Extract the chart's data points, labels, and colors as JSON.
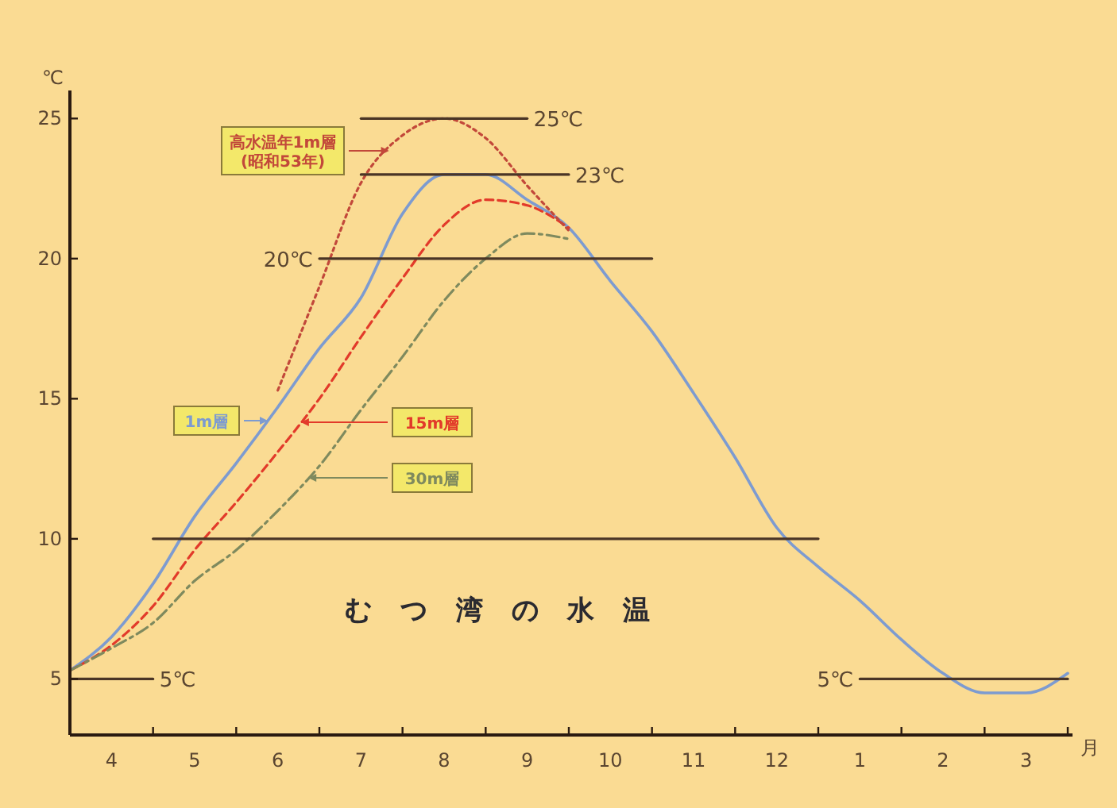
{
  "chart_data": {
    "type": "line",
    "title": "むつ湾の水温",
    "xlabel": "月",
    "ylabel": "℃",
    "categories": [
      null,
      "4",
      null,
      "5",
      null,
      "6",
      null,
      "7",
      null,
      "8",
      null,
      "9",
      null,
      "10",
      null,
      "11",
      null,
      "12",
      null,
      "1",
      null,
      "2",
      null,
      "3",
      null
    ],
    "ylim": [
      3,
      26
    ],
    "yticks": [
      5,
      10,
      15,
      20,
      25
    ],
    "grid": false,
    "legend": "left",
    "marker": "none",
    "series": [
      {
        "name": "1m層",
        "color": "#7d9bd0",
        "line_style": "solid",
        "values": [
          5.3,
          6.5,
          8.4,
          10.8,
          12.7,
          14.7,
          16.8,
          18.6,
          21.6,
          23.0,
          23.0,
          22.1,
          21.1,
          19.2,
          17.4,
          15.2,
          12.9,
          10.4,
          9.0,
          7.8,
          6.4,
          5.2,
          4.5,
          4.5,
          5.2
        ]
      },
      {
        "name": "15m層",
        "color": "#e23a2a",
        "line_style": "dashed",
        "values": [
          5.3,
          6.2,
          7.6,
          9.6,
          11.3,
          13.1,
          15.0,
          17.2,
          19.3,
          21.2,
          22.1,
          21.9,
          21.1,
          null,
          null,
          null,
          null,
          null,
          null,
          null,
          null,
          null,
          null,
          null,
          null
        ]
      },
      {
        "name": "30m層",
        "color": "#7f8a5e",
        "line_style": "dashdot",
        "values": [
          5.3,
          6.1,
          7.0,
          8.5,
          9.6,
          11.0,
          12.6,
          14.6,
          16.5,
          18.5,
          20.0,
          20.9,
          20.7,
          null,
          null,
          null,
          null,
          null,
          null,
          null,
          null,
          null,
          null,
          null,
          null
        ]
      },
      {
        "name": "高水温年1m層 (昭和53年)",
        "color": "#c2483a",
        "line_style": "dotted",
        "values": [
          null,
          null,
          null,
          null,
          null,
          15.3,
          19.0,
          22.7,
          24.4,
          25,
          24.3,
          22.6,
          21.0,
          null,
          null,
          null,
          null,
          null,
          null,
          null,
          null,
          null,
          null,
          null,
          null
        ]
      },
      {
        "name": "25℃",
        "color": "#4a3526",
        "line_style": "solid",
        "values": [
          null,
          null,
          null,
          null,
          null,
          null,
          null,
          25,
          25,
          25,
          25,
          25,
          null,
          null,
          null,
          null,
          null,
          null,
          null,
          null,
          null,
          null,
          null,
          null,
          null
        ]
      },
      {
        "name": "23℃",
        "color": "#4a3526",
        "line_style": "solid",
        "values": [
          null,
          null,
          null,
          null,
          null,
          null,
          null,
          23,
          23,
          23,
          23,
          23,
          23,
          null,
          null,
          null,
          null,
          null,
          null,
          null,
          null,
          null,
          null,
          null,
          null
        ]
      },
      {
        "name": "20℃",
        "color": "#4a3526",
        "line_style": "solid",
        "values": [
          null,
          null,
          null,
          null,
          null,
          null,
          20,
          20,
          20,
          20,
          20,
          20,
          20,
          20,
          20,
          null,
          null,
          null,
          null,
          null,
          null,
          null,
          null,
          null,
          null
        ]
      },
      {
        "color": "#4a3526",
        "line_style": "solid",
        "values": [
          null,
          null,
          10,
          10,
          10,
          10,
          10,
          10,
          10,
          10,
          10,
          10,
          10,
          10,
          10,
          10,
          10,
          10,
          10,
          null,
          null,
          null,
          null,
          null,
          null
        ]
      },
      {
        "name": "5℃",
        "color": "#4a3526",
        "line_style": "solid",
        "values": [
          5,
          5,
          5,
          null,
          null,
          null,
          null,
          null,
          null,
          null,
          null,
          null,
          null,
          null,
          null,
          null,
          null,
          null,
          null,
          null,
          null,
          null,
          null,
          null,
          null
        ]
      },
      {
        "name": "5℃",
        "color": "#4a3526",
        "line_style": "solid",
        "values": [
          null,
          null,
          null,
          null,
          null,
          null,
          null,
          null,
          null,
          null,
          null,
          null,
          null,
          null,
          null,
          null,
          null,
          null,
          null,
          5,
          5,
          5,
          5,
          5,
          5
        ]
      }
    ]
  }
}
